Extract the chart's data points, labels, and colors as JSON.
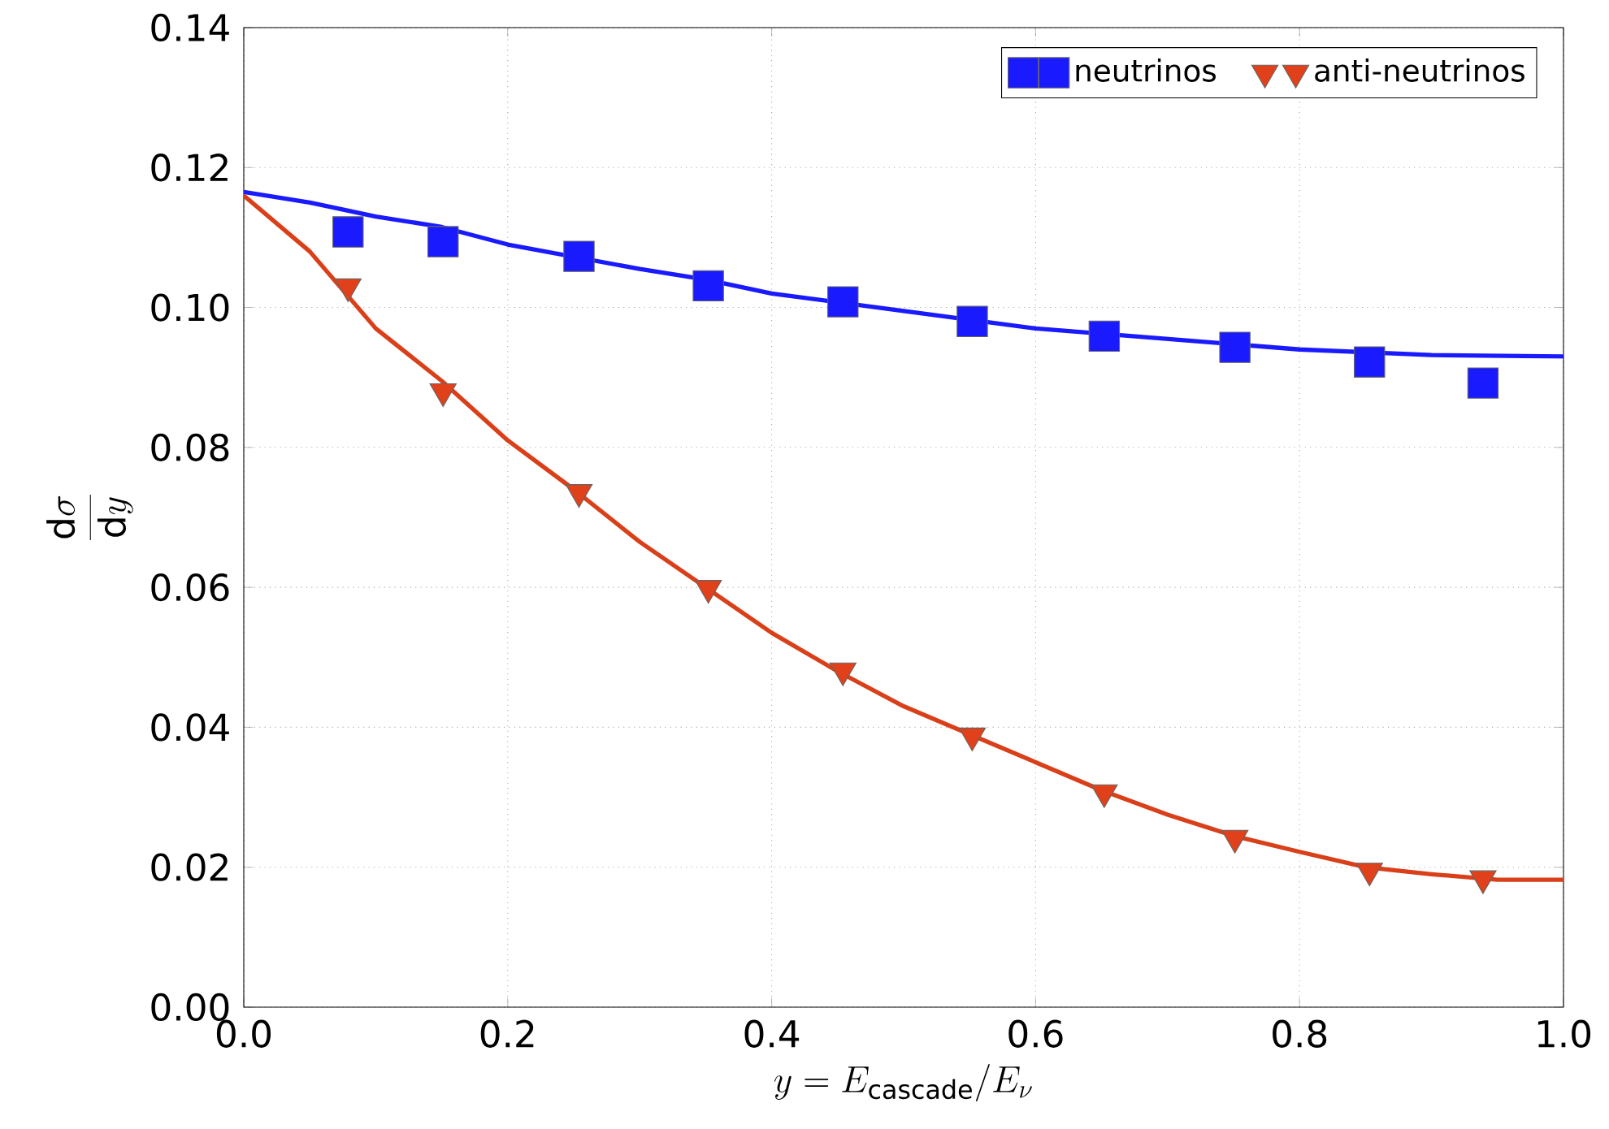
{
  "chart_data": {
    "type": "line",
    "xlabel": "y=E_{\\mathrm{cascade}}/E_{\\nu}",
    "ylabel": "\\frac{\\mathrm{d}\\sigma}{\\mathrm{d}y}",
    "xlim": [
      0,
      1
    ],
    "ylim": [
      0,
      0.14
    ],
    "xticks": [
      {
        "value": 0,
        "label": "0.0"
      },
      {
        "value": 0.2,
        "label": "0.2"
      },
      {
        "value": 0.4,
        "label": "0.4"
      },
      {
        "value": 0.6,
        "label": "0.6"
      },
      {
        "value": 0.8,
        "label": "0.8"
      },
      {
        "value": 1,
        "label": "1.0"
      }
    ],
    "yticks": [
      {
        "value": 0,
        "label": "0.00"
      },
      {
        "value": 0.02,
        "label": "0.02"
      },
      {
        "value": 0.04,
        "label": "0.04"
      },
      {
        "value": 0.06,
        "label": "0.06"
      },
      {
        "value": 0.08,
        "label": "0.08"
      },
      {
        "value": 0.1,
        "label": "0.10"
      },
      {
        "value": 0.12,
        "label": "0.12"
      },
      {
        "value": 0.14,
        "label": "0.14"
      }
    ],
    "grid": true,
    "legend": "top right",
    "series": [
      {
        "color": "#1a1aff",
        "marker": "none",
        "x": [
          0,
          0.05,
          0.1,
          0.15,
          0.2,
          0.3,
          0.35,
          0.4,
          0.5,
          0.6,
          0.7,
          0.8,
          0.9,
          1.0
        ],
        "values": [
          0.1165,
          0.115,
          0.113,
          0.1115,
          0.109,
          0.1055,
          0.104,
          0.102,
          0.0995,
          0.097,
          0.0955,
          0.094,
          0.0932,
          0.093
        ]
      },
      {
        "color": "#d9401a",
        "marker": "none",
        "x": [
          0,
          0.05,
          0.1,
          0.15,
          0.2,
          0.25,
          0.3,
          0.35,
          0.4,
          0.45,
          0.5,
          0.55,
          0.6,
          0.65,
          0.7,
          0.75,
          0.8,
          0.85,
          0.9,
          0.95,
          1.0
        ],
        "values": [
          0.116,
          0.108,
          0.097,
          0.0895,
          0.081,
          0.074,
          0.0665,
          0.06,
          0.0535,
          0.048,
          0.043,
          0.039,
          0.035,
          0.031,
          0.0275,
          0.0245,
          0.0222,
          0.02,
          0.019,
          0.0182,
          0.0182
        ]
      },
      {
        "type": "scatter",
        "name": "neutrinos",
        "color": "#1a1aff",
        "marker": "square",
        "x": [
          0.079,
          0.151,
          0.254,
          0.352,
          0.454,
          0.552,
          0.652,
          0.751,
          0.853,
          0.939
        ],
        "values": [
          0.1108,
          0.1094,
          0.1073,
          0.1031,
          0.1008,
          0.098,
          0.0959,
          0.0943,
          0.0922,
          0.0892
        ]
      },
      {
        "type": "scatter",
        "name": "anti-neutrinos",
        "color": "#e0401a",
        "marker": "triangle",
        "x": [
          0.079,
          0.151,
          0.254,
          0.352,
          0.454,
          0.552,
          0.652,
          0.751,
          0.853,
          0.939
        ],
        "values": [
          0.103,
          0.088,
          0.0736,
          0.0599,
          0.0481,
          0.0388,
          0.0307,
          0.0242,
          0.0195,
          0.0184
        ]
      }
    ]
  }
}
